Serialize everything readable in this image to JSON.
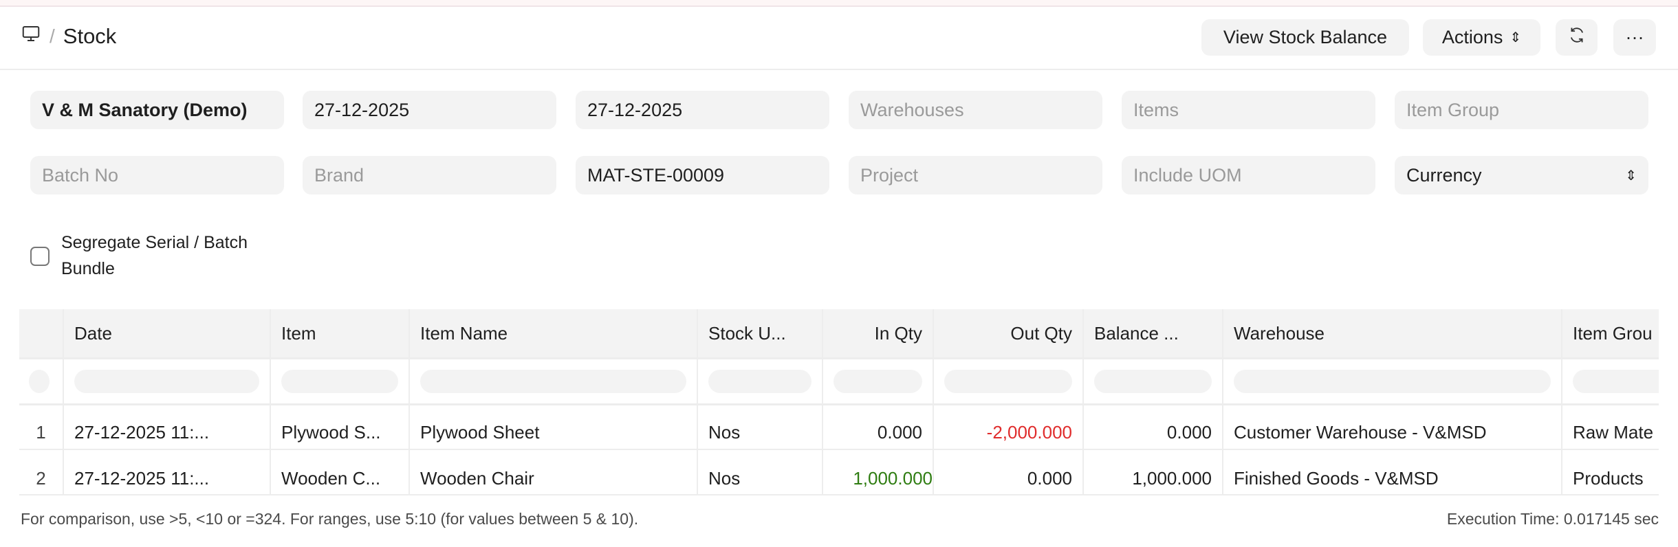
{
  "header": {
    "breadcrumb_icon": "desktop-icon",
    "separator": "/",
    "title": "Stock",
    "buttons": {
      "view_stock_balance": "View Stock Balance",
      "actions": "Actions",
      "refresh_icon": "refresh-icon",
      "more_icon": "more-icon",
      "more_label": "···",
      "sort_glyph": "⇕"
    }
  },
  "filters": {
    "company": "V & M Sanatory (Demo)",
    "from_date": "27-12-2025",
    "to_date": "27-12-2025",
    "warehouses_placeholder": "Warehouses",
    "items_placeholder": "Items",
    "item_group_placeholder": "Item Group",
    "batch_no_placeholder": "Batch No",
    "brand_placeholder": "Brand",
    "voucher_no": "MAT-STE-00009",
    "project_placeholder": "Project",
    "include_uom_placeholder": "Include UOM",
    "currency": "Currency",
    "segregate_label": "Segregate Serial / Batch Bundle",
    "segregate_checked": false
  },
  "table": {
    "columns": [
      "Date",
      "Item",
      "Item Name",
      "Stock U...",
      "In Qty",
      "Out Qty",
      "Balance ...",
      "Warehouse",
      "Item Grou"
    ],
    "rows": [
      {
        "index": "1",
        "date": "27-12-2025 11:...",
        "item": "Plywood S...",
        "item_name": "Plywood Sheet",
        "uom": "Nos",
        "in_qty": "0.000",
        "out_qty": "-2,000.000",
        "balance": "0.000",
        "warehouse": "Customer Warehouse - V&MSD",
        "item_group": "Raw Mate"
      },
      {
        "index": "2",
        "date": "27-12-2025 11:...",
        "item": "Wooden C...",
        "item_name": "Wooden Chair",
        "uom": "Nos",
        "in_qty": "1,000.000",
        "out_qty": "0.000",
        "balance": "1,000.000",
        "warehouse": "Finished Goods - V&MSD",
        "item_group": "Products"
      }
    ]
  },
  "footer": {
    "hint": "For comparison, use >5, <10 or =324. For ranges, use 5:10 (for values between 5 & 10).",
    "execution_time": "Execution Time: 0.017145 sec"
  },
  "colors": {
    "negative": "#e02c2c",
    "positive": "#2f7d12",
    "field_bg": "#f3f3f3"
  }
}
